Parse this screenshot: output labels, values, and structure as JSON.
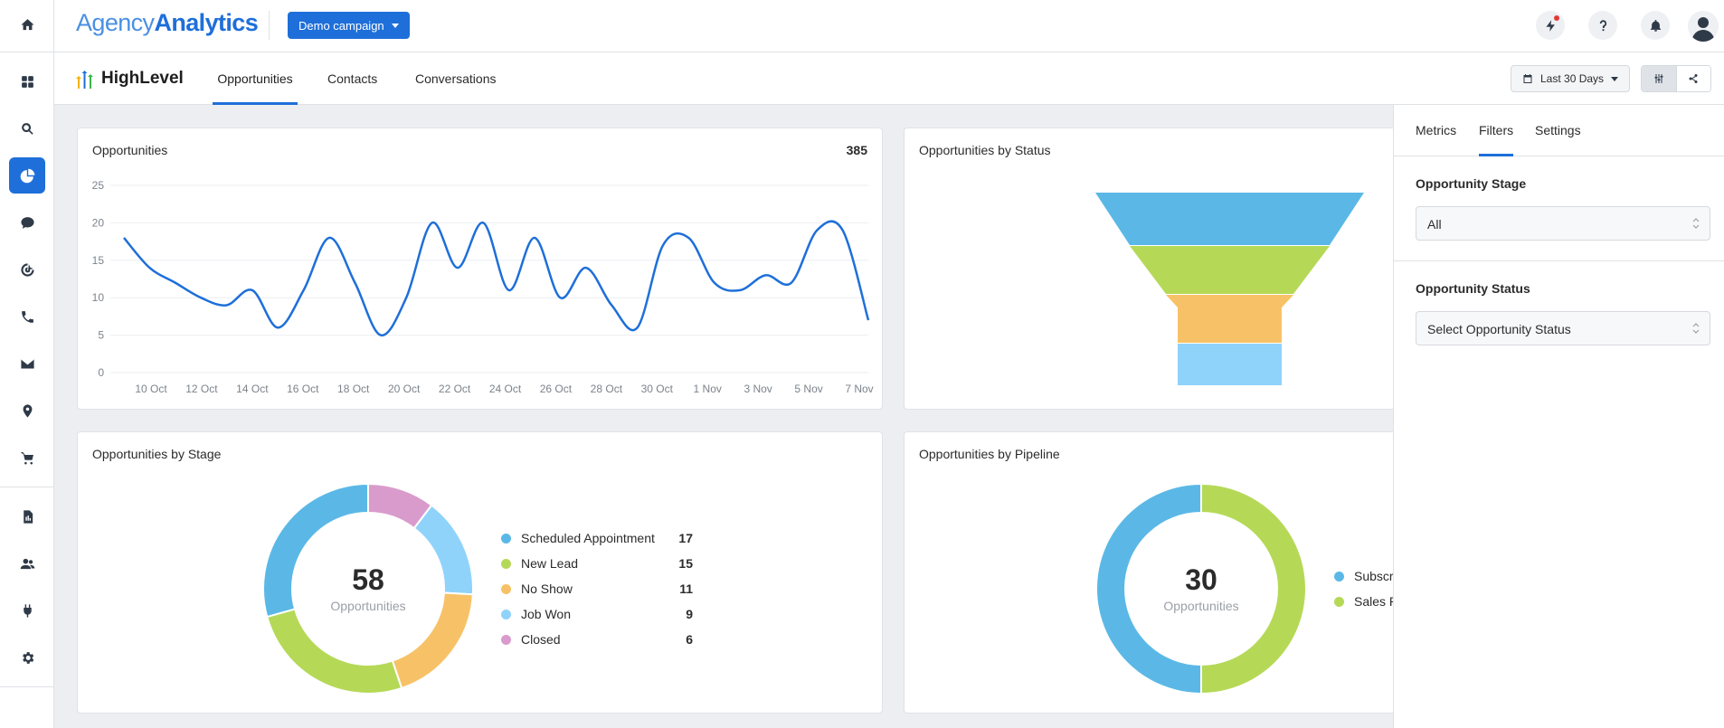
{
  "rail": {
    "items": [
      {
        "icon": "home-icon",
        "active": false
      },
      {
        "icon": "dashboard-grid-icon",
        "active": false
      },
      {
        "icon": "search-icon",
        "active": false
      },
      {
        "icon": "reports-pie-icon",
        "active": true
      },
      {
        "icon": "chat-icon",
        "active": false
      },
      {
        "icon": "seo-target-icon",
        "active": false
      },
      {
        "icon": "phone-icon",
        "active": false
      },
      {
        "icon": "email-icon",
        "active": false
      },
      {
        "icon": "location-pin-icon",
        "active": false
      },
      {
        "icon": "cart-icon",
        "active": false
      },
      {
        "icon": "document-icon",
        "active": false
      },
      {
        "icon": "users-icon",
        "active": false
      },
      {
        "icon": "plug-icon",
        "active": false
      },
      {
        "icon": "gear-icon",
        "active": false
      }
    ]
  },
  "topbar": {
    "logo_part1": "Agency",
    "logo_part2": "Analytics",
    "campaign_label": "Demo campaign",
    "icons": [
      "whats-new-icon",
      "help-icon",
      "bell-icon",
      "user-avatar-icon"
    ]
  },
  "subbar": {
    "brand": "HighLevel",
    "tabs": [
      {
        "label": "Opportunities",
        "active": true
      },
      {
        "label": "Contacts",
        "active": false
      },
      {
        "label": "Conversations",
        "active": false
      }
    ],
    "date_range": "Last 30 Days"
  },
  "cards": {
    "opportunities": {
      "title": "Opportunities",
      "value": "385"
    },
    "by_status": {
      "title": "Opportunities by Status"
    },
    "by_stage": {
      "title": "Opportunities by Stage",
      "center_value": "58",
      "center_label": "Opportunities"
    },
    "by_pipeline": {
      "title": "Opportunities by Pipeline",
      "center_value": "30",
      "center_label": "Opportunities"
    }
  },
  "chart_data": [
    {
      "type": "line",
      "title": "Opportunities",
      "x_tick_labels": [
        "10 Oct",
        "12 Oct",
        "14 Oct",
        "16 Oct",
        "18 Oct",
        "20 Oct",
        "22 Oct",
        "24 Oct",
        "26 Oct",
        "28 Oct",
        "30 Oct",
        "1 Nov",
        "3 Nov",
        "5 Nov",
        "7 Nov"
      ],
      "y_ticks": [
        0,
        5,
        10,
        15,
        20,
        25
      ],
      "ylim": [
        0,
        25
      ],
      "grid": true,
      "series": [
        {
          "values": [
            18,
            14,
            12,
            10,
            9,
            11,
            6,
            11,
            18,
            12,
            5,
            10,
            20,
            14,
            20,
            11,
            18,
            10,
            14,
            9,
            6,
            17,
            18,
            12,
            11,
            13,
            12,
            19,
            19,
            7
          ]
        }
      ],
      "color": "#1e6fd9"
    },
    {
      "type": "funnel",
      "title": "Opportunities by Status",
      "stages": [
        {
          "color": "#5bb8e6"
        },
        {
          "color": "#b5d957"
        },
        {
          "color": "#f7c267"
        },
        {
          "color": "#8fd3fb"
        }
      ]
    },
    {
      "type": "pie",
      "title": "Opportunities by Stage",
      "total": 58,
      "slices": [
        {
          "name": "Scheduled Appointment",
          "value": 17,
          "color": "#5bb8e6"
        },
        {
          "name": "New Lead",
          "value": 15,
          "color": "#b5d957"
        },
        {
          "name": "No Show",
          "value": 11,
          "color": "#f7c267"
        },
        {
          "name": "Job Won",
          "value": 9,
          "color": "#8fd3fb"
        },
        {
          "name": "Closed",
          "value": 6,
          "color": "#d99bcc"
        }
      ]
    },
    {
      "type": "pie",
      "title": "Opportunities by Pipeline",
      "total": 30,
      "slices": [
        {
          "name": "Subscri",
          "value": 15,
          "color": "#5bb8e6"
        },
        {
          "name": "Sales P",
          "value": 15,
          "color": "#b5d957"
        }
      ]
    }
  ],
  "panel": {
    "tabs": [
      {
        "label": "Metrics",
        "active": false
      },
      {
        "label": "Filters",
        "active": true
      },
      {
        "label": "Settings",
        "active": false
      }
    ],
    "stage_label": "Opportunity Stage",
    "stage_value": "All",
    "status_label": "Opportunity Status",
    "status_value": "Select Opportunity Status"
  }
}
